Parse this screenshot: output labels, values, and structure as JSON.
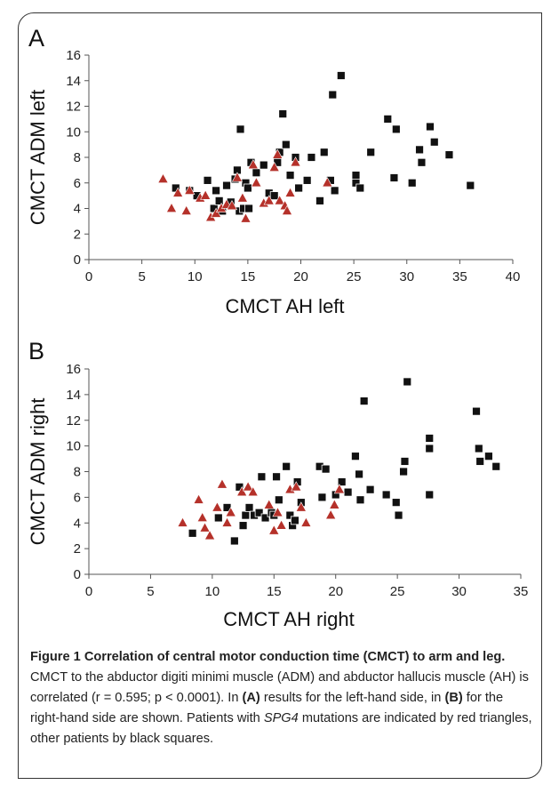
{
  "figure": {
    "caption_title": "Figure 1 Correlation of central motor conduction time (CMCT) to arm and leg.",
    "caption_parts": [
      " CMCT to the abductor digiti minimi muscle (ADM) and abductor hallucis muscle (AH) is correlated (r = 0.595; p < 0.0001). In ",
      "(A)",
      " results for the left-hand side, in ",
      "(B)",
      " for the right-hand side are shown. Patients with ",
      "SPG4",
      " mutations are indicated by red triangles, other patients by black squares."
    ]
  },
  "chart_data": [
    {
      "type": "scatter",
      "panel_label": "A",
      "xlabel": "CMCT AH left",
      "ylabel": "CMCT ADM left",
      "xlim": [
        0,
        40
      ],
      "ylim": [
        0,
        16
      ],
      "xticks": [
        0,
        5,
        10,
        15,
        20,
        25,
        30,
        35,
        40
      ],
      "yticks": [
        0,
        2,
        4,
        6,
        8,
        10,
        12,
        14,
        16
      ],
      "grid": false,
      "colors": {
        "squares": "#111111",
        "triangles": "#b5312a"
      },
      "series": [
        {
          "marker": "square",
          "points": [
            [
              8.2,
              5.6
            ],
            [
              9.5,
              5.4
            ],
            [
              10.2,
              5.0
            ],
            [
              11.2,
              6.2
            ],
            [
              11.8,
              4.0
            ],
            [
              12.0,
              5.4
            ],
            [
              12.3,
              4.6
            ],
            [
              12.6,
              3.8
            ],
            [
              13.0,
              5.8
            ],
            [
              13.4,
              4.5
            ],
            [
              13.8,
              6.3
            ],
            [
              14.0,
              7.0
            ],
            [
              14.2,
              3.8
            ],
            [
              14.3,
              10.2
            ],
            [
              14.6,
              4.0
            ],
            [
              14.8,
              6.0
            ],
            [
              15.0,
              5.6
            ],
            [
              15.1,
              4.0
            ],
            [
              15.3,
              7.6
            ],
            [
              15.8,
              6.8
            ],
            [
              16.5,
              7.4
            ],
            [
              17.0,
              5.2
            ],
            [
              17.5,
              5.0
            ],
            [
              17.8,
              7.6
            ],
            [
              18.0,
              8.4
            ],
            [
              18.3,
              11.4
            ],
            [
              18.6,
              9.0
            ],
            [
              19.0,
              6.6
            ],
            [
              19.5,
              8.0
            ],
            [
              19.8,
              5.6
            ],
            [
              20.6,
              6.2
            ],
            [
              21.0,
              8.0
            ],
            [
              21.8,
              4.6
            ],
            [
              22.2,
              8.4
            ],
            [
              22.8,
              6.2
            ],
            [
              23.0,
              12.9
            ],
            [
              23.2,
              5.4
            ],
            [
              23.8,
              14.4
            ],
            [
              25.2,
              6.0
            ],
            [
              25.2,
              6.6
            ],
            [
              25.6,
              5.6
            ],
            [
              26.6,
              8.4
            ],
            [
              28.2,
              11.0
            ],
            [
              28.8,
              6.4
            ],
            [
              29.0,
              10.2
            ],
            [
              30.5,
              6.0
            ],
            [
              31.2,
              8.6
            ],
            [
              31.4,
              7.6
            ],
            [
              32.2,
              10.4
            ],
            [
              32.6,
              9.2
            ],
            [
              34.0,
              8.2
            ],
            [
              36.0,
              5.8
            ]
          ]
        },
        {
          "marker": "triangle",
          "points": [
            [
              7.0,
              6.3
            ],
            [
              7.8,
              4.0
            ],
            [
              8.4,
              5.2
            ],
            [
              9.2,
              3.8
            ],
            [
              9.5,
              5.4
            ],
            [
              10.5,
              4.8
            ],
            [
              11.0,
              5.0
            ],
            [
              11.5,
              3.3
            ],
            [
              12.0,
              3.6
            ],
            [
              12.5,
              4.0
            ],
            [
              13.0,
              4.3
            ],
            [
              13.5,
              4.2
            ],
            [
              14.0,
              6.4
            ],
            [
              14.5,
              4.8
            ],
            [
              14.8,
              3.2
            ],
            [
              15.5,
              7.4
            ],
            [
              15.8,
              6.0
            ],
            [
              16.5,
              4.4
            ],
            [
              17.0,
              4.6
            ],
            [
              17.5,
              7.2
            ],
            [
              17.8,
              8.2
            ],
            [
              18.0,
              4.6
            ],
            [
              18.5,
              4.2
            ],
            [
              18.7,
              3.8
            ],
            [
              19.0,
              5.2
            ],
            [
              19.5,
              7.6
            ],
            [
              22.5,
              6.0
            ]
          ]
        }
      ]
    },
    {
      "type": "scatter",
      "panel_label": "B",
      "xlabel": "CMCT AH right",
      "ylabel": "CMCT ADM right",
      "xlim": [
        0,
        35
      ],
      "ylim": [
        0,
        16
      ],
      "xticks": [
        0,
        5,
        10,
        15,
        20,
        25,
        30,
        35
      ],
      "yticks": [
        0,
        2,
        4,
        6,
        8,
        10,
        12,
        14,
        16
      ],
      "grid": false,
      "colors": {
        "squares": "#111111",
        "triangles": "#b5312a"
      },
      "series": [
        {
          "marker": "square",
          "points": [
            [
              8.4,
              3.2
            ],
            [
              10.5,
              4.4
            ],
            [
              11.2,
              5.2
            ],
            [
              11.8,
              2.6
            ],
            [
              12.2,
              6.8
            ],
            [
              12.5,
              3.8
            ],
            [
              12.7,
              4.6
            ],
            [
              13.0,
              5.2
            ],
            [
              13.4,
              4.6
            ],
            [
              13.8,
              4.8
            ],
            [
              14.0,
              7.6
            ],
            [
              14.3,
              4.4
            ],
            [
              14.8,
              4.8
            ],
            [
              15.0,
              4.6
            ],
            [
              15.2,
              7.6
            ],
            [
              15.4,
              5.8
            ],
            [
              16.0,
              8.4
            ],
            [
              16.3,
              4.6
            ],
            [
              16.5,
              3.8
            ],
            [
              16.7,
              4.2
            ],
            [
              16.9,
              7.2
            ],
            [
              17.2,
              5.6
            ],
            [
              18.7,
              8.4
            ],
            [
              18.9,
              6.0
            ],
            [
              19.2,
              8.2
            ],
            [
              20.0,
              6.2
            ],
            [
              20.5,
              7.2
            ],
            [
              21.0,
              6.4
            ],
            [
              21.6,
              9.2
            ],
            [
              21.9,
              7.8
            ],
            [
              22.0,
              5.8
            ],
            [
              22.3,
              13.5
            ],
            [
              22.8,
              6.6
            ],
            [
              24.1,
              6.2
            ],
            [
              24.9,
              5.6
            ],
            [
              25.1,
              4.6
            ],
            [
              25.5,
              8.0
            ],
            [
              25.6,
              8.8
            ],
            [
              25.8,
              15.0
            ],
            [
              27.6,
              6.2
            ],
            [
              27.6,
              9.8
            ],
            [
              27.6,
              10.6
            ],
            [
              31.4,
              12.7
            ],
            [
              31.6,
              9.8
            ],
            [
              31.7,
              8.8
            ],
            [
              32.4,
              9.2
            ],
            [
              33.0,
              8.4
            ]
          ]
        },
        {
          "marker": "triangle",
          "points": [
            [
              7.6,
              4.0
            ],
            [
              8.9,
              5.8
            ],
            [
              9.2,
              4.4
            ],
            [
              9.4,
              3.6
            ],
            [
              9.8,
              3.0
            ],
            [
              10.4,
              5.2
            ],
            [
              10.8,
              7.0
            ],
            [
              11.2,
              4.0
            ],
            [
              11.5,
              4.8
            ],
            [
              12.4,
              6.4
            ],
            [
              12.9,
              6.8
            ],
            [
              13.3,
              6.4
            ],
            [
              14.6,
              5.4
            ],
            [
              15.0,
              3.4
            ],
            [
              15.3,
              4.8
            ],
            [
              15.6,
              3.8
            ],
            [
              16.3,
              6.6
            ],
            [
              16.8,
              6.8
            ],
            [
              17.2,
              5.2
            ],
            [
              17.6,
              4.0
            ],
            [
              19.6,
              4.6
            ],
            [
              19.9,
              5.4
            ],
            [
              20.3,
              6.6
            ]
          ]
        }
      ]
    }
  ]
}
